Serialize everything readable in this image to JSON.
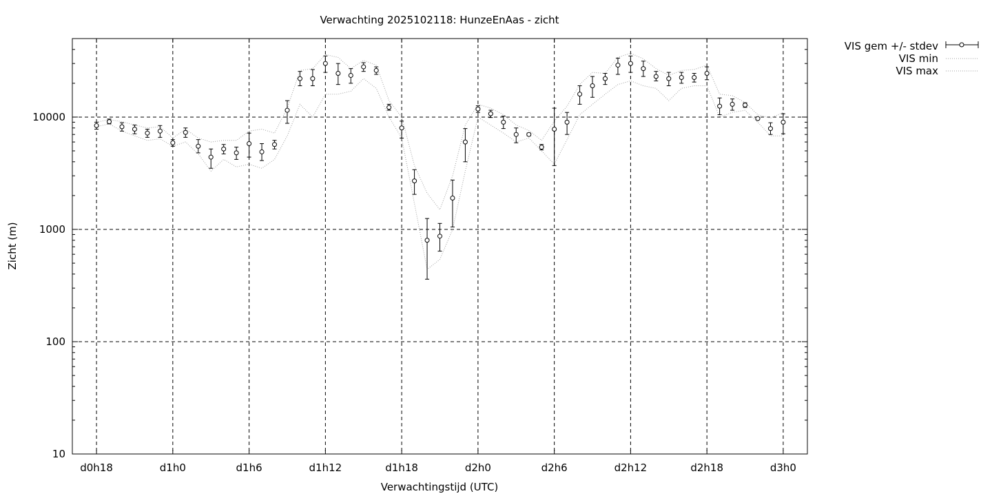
{
  "chart_data": {
    "type": "scatter",
    "title": "Verwachting 2025102118: HunzeEnAas - zicht",
    "xlabel": "Verwachtingstijd (UTC)",
    "ylabel": "Zicht (m)",
    "x_ticks": [
      {
        "x": 18,
        "label": "d0h18"
      },
      {
        "x": 24,
        "label": "d1h0"
      },
      {
        "x": 30,
        "label": "d1h6"
      },
      {
        "x": 36,
        "label": "d1h12"
      },
      {
        "x": 42,
        "label": "d1h18"
      },
      {
        "x": 48,
        "label": "d2h0"
      },
      {
        "x": 54,
        "label": "d2h6"
      },
      {
        "x": 60,
        "label": "d2h12"
      },
      {
        "x": 66,
        "label": "d2h18"
      },
      {
        "x": 72,
        "label": "d3h0"
      }
    ],
    "y_ticks": [
      {
        "y": 10,
        "label": "10"
      },
      {
        "y": 100,
        "label": "100"
      },
      {
        "y": 1000,
        "label": "1000"
      },
      {
        "y": 10000,
        "label": "10000"
      }
    ],
    "xlim": [
      16.1,
      73.9
    ],
    "ylim": [
      10,
      50000
    ],
    "y_scale": "log",
    "grid": true,
    "legend_position": "outside-top-right",
    "x": [
      18,
      19,
      20,
      21,
      22,
      23,
      24,
      25,
      26,
      27,
      28,
      29,
      30,
      31,
      32,
      33,
      34,
      35,
      36,
      37,
      38,
      39,
      40,
      41,
      42,
      43,
      44,
      45,
      46,
      47,
      48,
      49,
      50,
      51,
      52,
      53,
      54,
      55,
      56,
      57,
      58,
      59,
      60,
      61,
      62,
      63,
      64,
      65,
      66,
      67,
      68,
      69,
      70,
      71,
      72
    ],
    "series": [
      {
        "name": "VIS gem +/- stdev",
        "style": "errorbars",
        "color": "#000000",
        "mean": [
          8400,
          9100,
          8200,
          7800,
          7200,
          7500,
          5900,
          7300,
          5500,
          4400,
          5200,
          4800,
          5800,
          4900,
          5700,
          11500,
          22000,
          22000,
          30000,
          24500,
          23500,
          28000,
          26000,
          12200,
          8000,
          2700,
          800,
          870,
          1900,
          6000,
          11800,
          10700,
          9000,
          7000,
          7000,
          5400,
          7800,
          9000,
          16000,
          19000,
          22000,
          29000,
          30000,
          27000,
          23000,
          22000,
          22500,
          22500,
          24500,
          12500,
          13000,
          12800,
          9700,
          7900,
          9000
        ],
        "low": [
          7800,
          8700,
          7500,
          7100,
          6600,
          6600,
          5500,
          6600,
          4800,
          3500,
          4700,
          4200,
          4400,
          4100,
          5200,
          8800,
          19000,
          19000,
          25000,
          19500,
          20000,
          25500,
          24000,
          11500,
          6500,
          2050,
          360,
          640,
          1050,
          4000,
          11000,
          9900,
          7900,
          5900,
          6800,
          5100,
          3700,
          7000,
          13000,
          15000,
          19500,
          24000,
          25000,
          23000,
          21000,
          19000,
          20000,
          20500,
          21500,
          10500,
          11500,
          12200,
          9500,
          7000,
          7100
        ],
        "high": [
          9000,
          9600,
          8900,
          8500,
          7800,
          8400,
          6300,
          8000,
          6300,
          5200,
          5700,
          5400,
          7200,
          5800,
          6200,
          14000,
          25500,
          26500,
          35000,
          30000,
          27000,
          30500,
          28000,
          13000,
          9200,
          3400,
          1250,
          1130,
          2750,
          7900,
          12600,
          11500,
          10200,
          8000,
          7200,
          5700,
          12000,
          11000,
          19000,
          23000,
          24500,
          33500,
          35000,
          31500,
          25500,
          25000,
          25000,
          24500,
          28000,
          14800,
          14500,
          13400,
          9900,
          8900,
          10700
        ]
      },
      {
        "name": "VIS min",
        "style": "dotted",
        "color": "#a0a0a0",
        "values": [
          8200,
          8700,
          7500,
          6800,
          6200,
          6400,
          5500,
          6000,
          4700,
          3300,
          4200,
          3600,
          3800,
          3500,
          4200,
          6800,
          13000,
          10000,
          16000,
          16000,
          17000,
          22000,
          18000,
          10000,
          6500,
          1700,
          440,
          540,
          1000,
          3300,
          10000,
          8500,
          7200,
          6000,
          6500,
          5000,
          3800,
          6300,
          10500,
          13000,
          16000,
          19500,
          21000,
          19000,
          18000,
          14000,
          18000,
          19000,
          19000,
          10000,
          11000,
          11500,
          9000,
          6800,
          6800
        ]
      },
      {
        "name": "VIS max",
        "style": "dotted",
        "color": "#a0a0a0",
        "values": [
          9000,
          9500,
          9100,
          8500,
          8000,
          8200,
          6500,
          7800,
          6500,
          6000,
          6200,
          6200,
          7500,
          7800,
          7200,
          12000,
          26000,
          27000,
          36000,
          34000,
          27000,
          32000,
          29000,
          14000,
          10000,
          3700,
          2100,
          1500,
          3000,
          8500,
          13000,
          12000,
          10500,
          8500,
          7600,
          6200,
          9200,
          12500,
          19500,
          25000,
          24500,
          34000,
          37000,
          33000,
          27000,
          23500,
          26000,
          26500,
          29000,
          16000,
          15500,
          13500,
          10500,
          9800,
          11000
        ]
      }
    ]
  }
}
